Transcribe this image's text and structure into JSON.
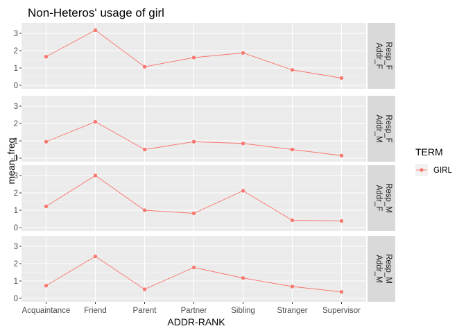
{
  "chart_data": {
    "type": "line",
    "title": "Non-Heteros' usage of girl",
    "xlabel": "ADDR-RANK",
    "ylabel": "mean_freq",
    "categories": [
      "Acquaintance",
      "Friend",
      "Parent",
      "Partner",
      "Sibling",
      "Stranger",
      "Supervisor"
    ],
    "ylim": [
      -0.2,
      3.6
    ],
    "yticks": [
      0,
      1,
      2,
      3
    ],
    "grid": true,
    "legend": {
      "title": "TERM",
      "placement": "right",
      "entries": [
        {
          "name": "GIRL",
          "color": "#F8766D"
        }
      ]
    },
    "series_color": "#F8766D",
    "panels": [
      {
        "strip_top": "Resp_F",
        "strip_bottom": "Addr_F",
        "series": [
          {
            "name": "GIRL",
            "values": [
              1.65,
              3.18,
              1.07,
              1.6,
              1.87,
              0.89,
              0.42
            ]
          }
        ]
      },
      {
        "strip_top": "Resp_F",
        "strip_bottom": "Addr_M",
        "series": [
          {
            "name": "GIRL",
            "values": [
              0.95,
              2.1,
              0.5,
              0.95,
              0.85,
              0.5,
              0.15
            ]
          }
        ]
      },
      {
        "strip_top": "Resp_M",
        "strip_bottom": "Addr_F",
        "series": [
          {
            "name": "GIRL",
            "values": [
              1.22,
              3.0,
              1.0,
              0.82,
              2.12,
              0.42,
              0.38
            ]
          }
        ]
      },
      {
        "strip_top": "Resp_M",
        "strip_bottom": "Addr_M",
        "series": [
          {
            "name": "GIRL",
            "values": [
              0.73,
              2.42,
              0.52,
              1.78,
              1.17,
              0.68,
              0.37
            ]
          }
        ]
      }
    ],
    "y_tick_label_override": {
      "panel": 1,
      "value": 0,
      "label": "-0"
    }
  }
}
